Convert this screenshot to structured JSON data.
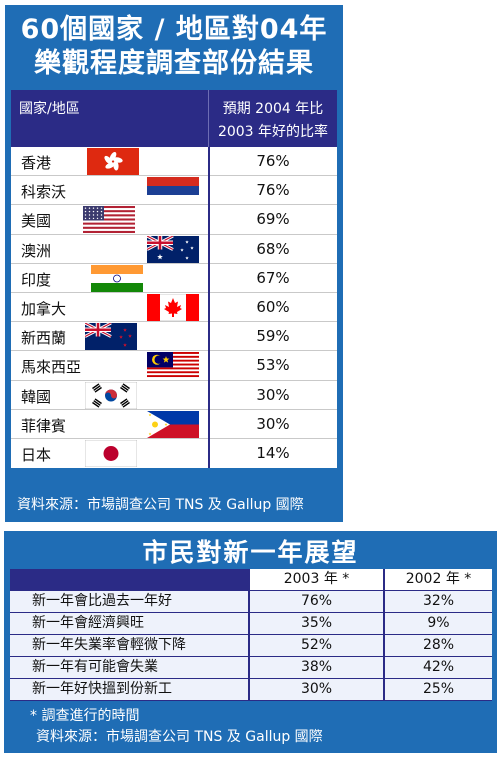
{
  "panel1": {
    "title_line1": "60個國家 / 地區對04年",
    "title_line2": "樂觀程度調查部份結果",
    "header_country": "國家/地區",
    "header_ratio_line1": "預期 2004 年比",
    "header_ratio_line2": "2003 年好的比率",
    "source": "資料來源：市場調查公司 TNS 及 Gallup 國際"
  },
  "chart_data": [
    {
      "type": "table",
      "title": "60個國家 / 地區對04年樂觀程度調查部份結果",
      "columns": [
        "國家/地區",
        "預期 2004 年比 2003 年好的比率"
      ],
      "rows": [
        {
          "country": "香港",
          "value": "76%",
          "flag": "hong-kong-flag"
        },
        {
          "country": "科索沃",
          "value": "76%",
          "flag": "kosovo-flag"
        },
        {
          "country": "美國",
          "value": "69%",
          "flag": "usa-flag"
        },
        {
          "country": "澳洲",
          "value": "68%",
          "flag": "australia-flag"
        },
        {
          "country": "印度",
          "value": "67%",
          "flag": "india-flag"
        },
        {
          "country": "加拿大",
          "value": "60%",
          "flag": "canada-flag"
        },
        {
          "country": "新西蘭",
          "value": "59%",
          "flag": "new-zealand-flag"
        },
        {
          "country": "馬來西亞",
          "value": "53%",
          "flag": "malaysia-flag"
        },
        {
          "country": "韓國",
          "value": "30%",
          "flag": "south-korea-flag"
        },
        {
          "country": "菲律賓",
          "value": "30%",
          "flag": "philippines-flag"
        },
        {
          "country": "日本",
          "value": "14%",
          "flag": "japan-flag"
        }
      ]
    },
    {
      "type": "table",
      "title": "市民對新一年展望",
      "columns": [
        "",
        "2003 年 *",
        "2002 年 *"
      ],
      "rows": [
        {
          "item": "新一年會比過去一年好",
          "y2003": "76%",
          "y2002": "32%"
        },
        {
          "item": "新一年會經濟興旺",
          "y2003": "35%",
          "y2002": "9%"
        },
        {
          "item": "新一年失業率會輕微下降",
          "y2003": "52%",
          "y2002": "28%"
        },
        {
          "item": "新一年有可能會失業",
          "y2003": "38%",
          "y2002": "42%"
        },
        {
          "item": "新一年好快搵到份新工",
          "y2003": "30%",
          "y2002": "25%"
        }
      ]
    }
  ],
  "panel2": {
    "title": "市民對新一年展望",
    "note": "* 調查進行的時間",
    "source": "資料來源：市場調查公司 TNS 及 Gallup 國際"
  },
  "colors": {
    "panel_blue": "#1f6db5",
    "header_navy": "#2b2b86",
    "row_light": "#eef2fb"
  }
}
